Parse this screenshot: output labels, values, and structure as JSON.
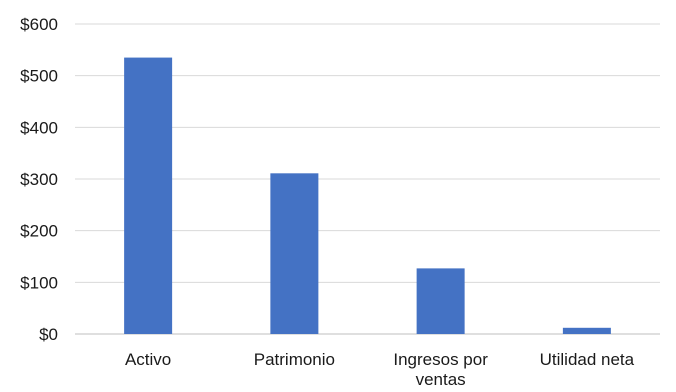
{
  "chart_data": {
    "type": "bar",
    "categories": [
      "Activo",
      "Patrimonio",
      "Ingresos por ventas",
      "Utilidad neta"
    ],
    "category_label_lines": [
      [
        "Activo"
      ],
      [
        "Patrimonio"
      ],
      [
        "Ingresos por",
        "ventas"
      ],
      [
        "Utilidad neta"
      ]
    ],
    "values": [
      535,
      311,
      127,
      12
    ],
    "ylim": [
      0,
      600
    ],
    "yticks": [
      0,
      100,
      200,
      300,
      400,
      500,
      600
    ],
    "ytick_labels": [
      "$0",
      "$100",
      "$200",
      "$300",
      "$400",
      "$500",
      "$600"
    ],
    "title": "",
    "xlabel": "",
    "ylabel": "",
    "grid": true,
    "bar_color": "#4472c4",
    "grid_color": "#d9d9d9"
  }
}
